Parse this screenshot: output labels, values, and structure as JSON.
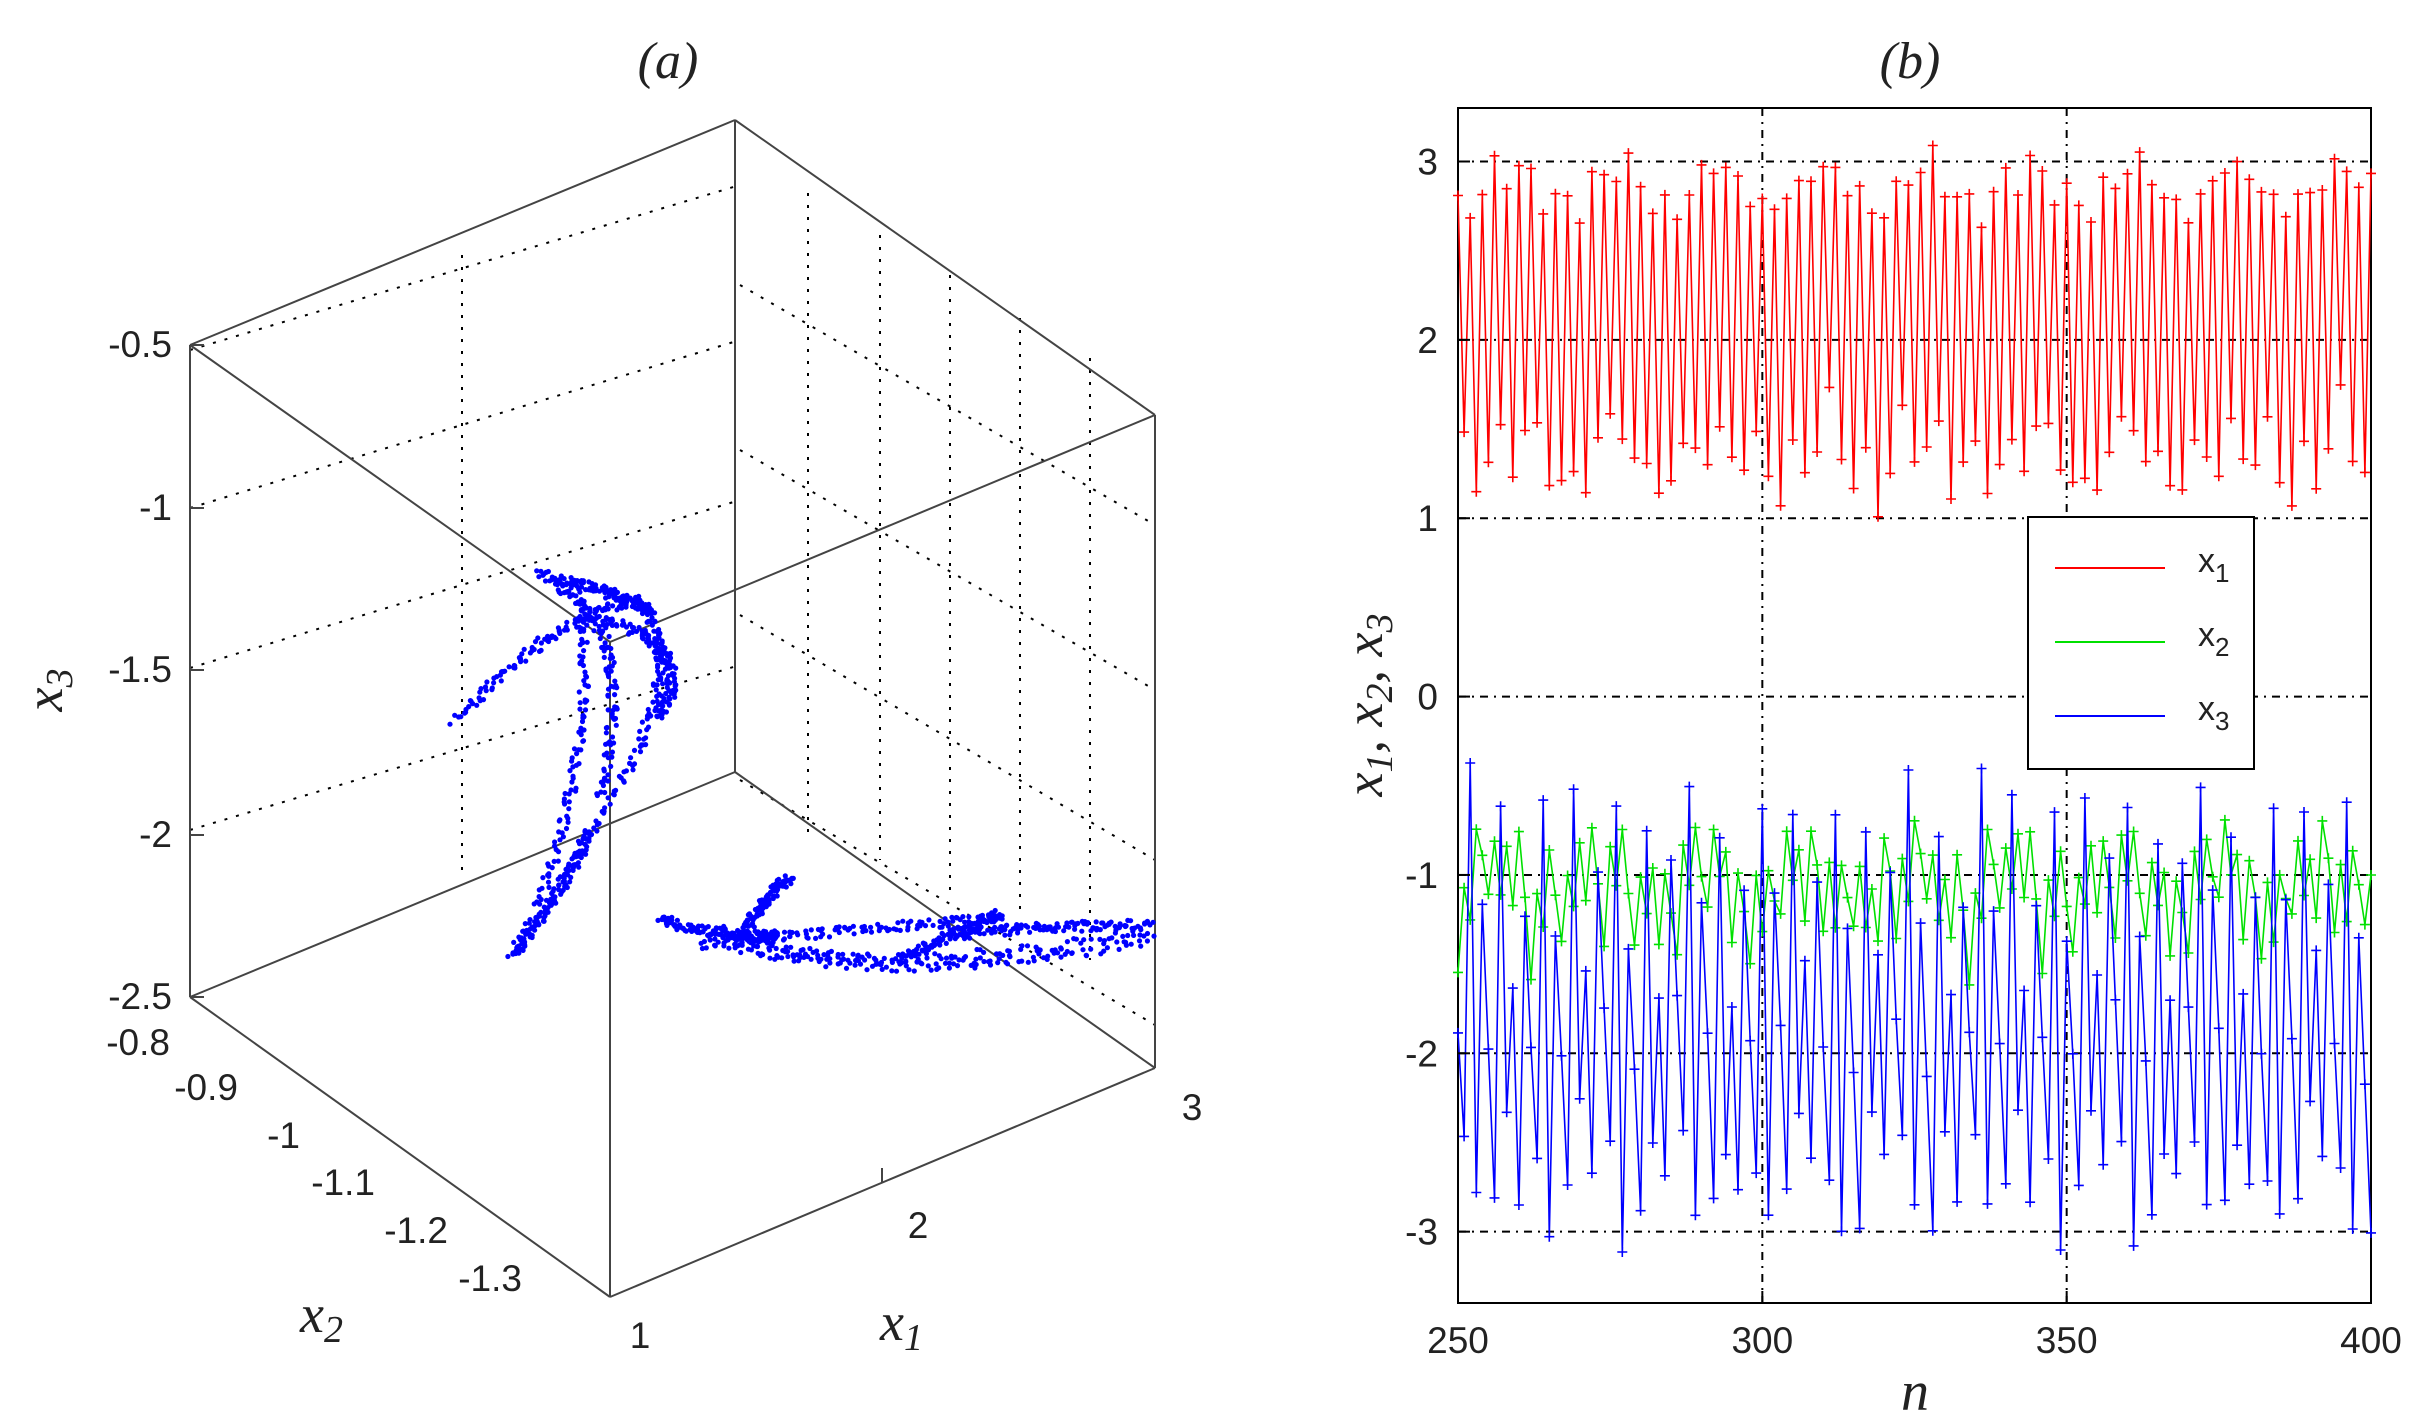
{
  "chart_data": [
    {
      "type": "scatter3d",
      "panel_label": "(a)",
      "xlabel": "x",
      "xlabel_sub": "1",
      "ylabel": "x",
      "ylabel_sub": "2",
      "zlabel": "x",
      "zlabel_sub": "3",
      "xlim": [
        1,
        3
      ],
      "ylim": [
        -1.35,
        -0.8
      ],
      "zlim": [
        -2.5,
        -0.5
      ],
      "x_ticks": [
        "1",
        "2",
        "3"
      ],
      "y_ticks": [
        "-0.8",
        "-0.9",
        "-1",
        "-1.1",
        "-1.2",
        "-1.3"
      ],
      "z_ticks": [
        "-0.5",
        "-1",
        "-1.5",
        "-2",
        "-2.5"
      ],
      "marker_color": "#0000ff",
      "attractor_note": "two-lobed point cloud of the (x1,x2,x3) attractor"
    },
    {
      "type": "line",
      "panel_label": "(b)",
      "xlabel": "n",
      "ylabel": "x",
      "ylabel_parts": [
        "1",
        "2",
        "3"
      ],
      "xlim": [
        250,
        400
      ],
      "ylim": [
        -3.4,
        3.3
      ],
      "x_ticks": [
        "250",
        "300",
        "350",
        "400"
      ],
      "y_ticks": [
        "3",
        "2",
        "1",
        "0",
        "-1",
        "-2",
        "-3"
      ],
      "grid": true,
      "legend_position": "right-middle",
      "series": [
        {
          "name": "x",
          "sub": "1",
          "color": "#ff0000",
          "pattern": [
            2.85,
            1.55,
            2.82,
            1.3,
            2.88,
            1.25,
            2.9,
            1.42,
            2.8,
            1.18,
            2.86,
            1.33
          ]
        },
        {
          "name": "x",
          "sub": "2",
          "color": "#00e000",
          "pattern": [
            -1.45,
            -0.95,
            -1.2,
            -0.82,
            -1.05,
            -1.25,
            -0.88,
            -1.15,
            -0.92,
            -1.3,
            -0.85,
            -1.1
          ]
        },
        {
          "name": "x",
          "sub": "3",
          "color": "#0000ff",
          "pattern": [
            -1.85,
            -2.55,
            -0.55,
            -2.95,
            -1.25,
            -2.0,
            -2.85,
            -0.7,
            -2.4,
            -1.6,
            -2.7,
            -1.05
          ]
        }
      ]
    }
  ]
}
